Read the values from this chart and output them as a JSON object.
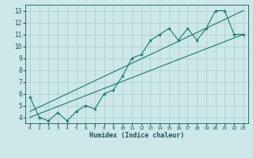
{
  "xlabel": "Humidex (Indice chaleur)",
  "bg_color": "#cce8e8",
  "grid_color": "#aacccc",
  "line_color": "#1a7a6a",
  "xlim": [
    -0.5,
    23.5
  ],
  "ylim": [
    3.5,
    13.5
  ],
  "xticks": [
    0,
    1,
    2,
    3,
    4,
    5,
    6,
    7,
    8,
    9,
    10,
    11,
    12,
    13,
    14,
    15,
    16,
    17,
    18,
    19,
    20,
    21,
    22,
    23
  ],
  "yticks": [
    4,
    5,
    6,
    7,
    8,
    9,
    10,
    11,
    12,
    13
  ],
  "curve1_x": [
    0,
    1,
    2,
    3,
    4,
    5,
    6,
    7,
    8,
    9,
    10,
    11,
    12,
    13,
    14,
    15,
    16,
    17,
    18,
    19,
    20,
    21,
    22,
    23
  ],
  "curve1_y": [
    5.7,
    4.0,
    3.7,
    4.4,
    3.7,
    4.5,
    5.0,
    4.7,
    6.0,
    6.3,
    7.5,
    9.0,
    9.3,
    10.5,
    11.0,
    11.5,
    10.5,
    11.5,
    10.5,
    11.5,
    13.0,
    13.0,
    11.0,
    11.0
  ],
  "line1_x": [
    0,
    23
  ],
  "line1_y": [
    4.5,
    13.0
  ],
  "line2_x": [
    0,
    23
  ],
  "line2_y": [
    4.0,
    11.0
  ]
}
